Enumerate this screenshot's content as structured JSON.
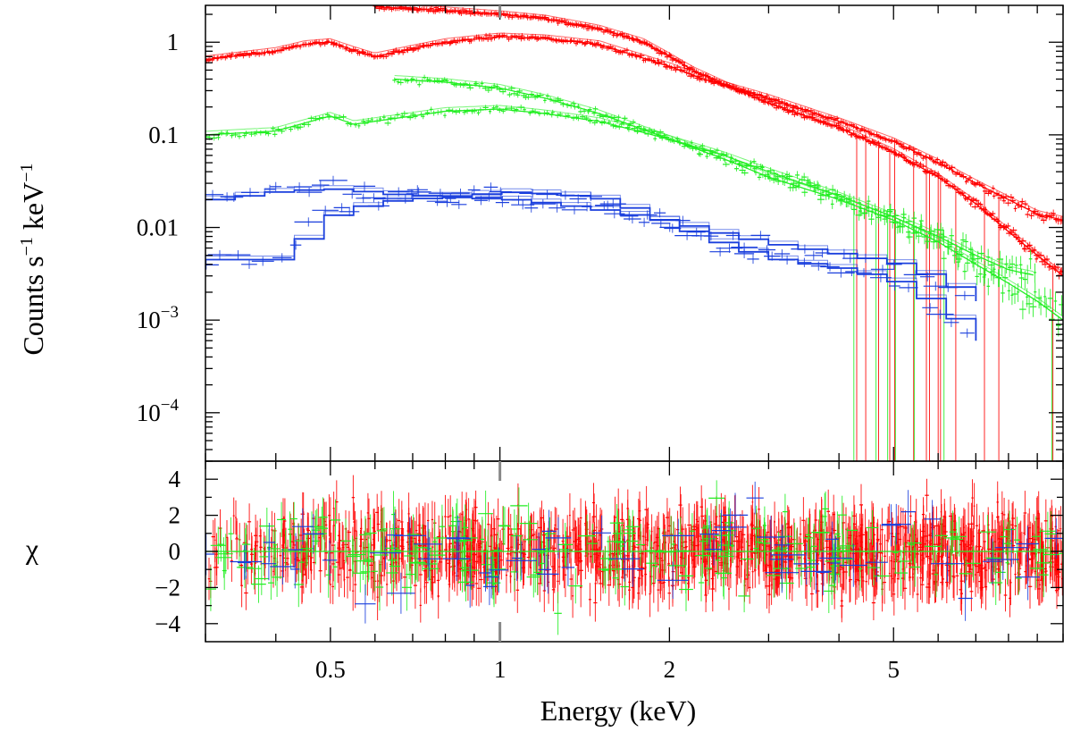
{
  "chart_data": [
    {
      "panel": "spectrum",
      "type": "scatter",
      "ylabel": "Counts s⁻¹ keV⁻¹",
      "ylabel_main": "Counts s",
      "ylabel_exp1": "−1",
      "ylabel_mid": " keV",
      "ylabel_exp2": "−1",
      "xscale": "log",
      "yscale": "log",
      "xlim": [
        0.3,
        10
      ],
      "ylim": [
        3e-05,
        2.5
      ],
      "yticks": [
        {
          "value": 1,
          "label": "1"
        },
        {
          "value": 0.1,
          "label": "0.1"
        },
        {
          "value": 0.01,
          "label": "0.01"
        },
        {
          "value": 0.001,
          "label": "10",
          "exp": "−3"
        },
        {
          "value": 0.0001,
          "label": "10",
          "exp": "−4"
        }
      ],
      "series": [
        {
          "name": "red-high",
          "color": "#ff0000",
          "x": [
            0.6,
            0.8,
            1.0,
            1.2,
            1.5,
            1.8,
            2.0,
            2.2,
            2.5,
            3.0,
            4.0,
            5.0,
            6.0,
            7.0,
            8.0,
            9.0,
            10.0
          ],
          "y": [
            2.4,
            2.2,
            2.0,
            1.8,
            1.4,
            1.0,
            0.7,
            0.5,
            0.35,
            0.22,
            0.12,
            0.065,
            0.035,
            0.018,
            0.009,
            0.005,
            0.003
          ]
        },
        {
          "name": "red-low",
          "color": "#ff0000",
          "x": [
            0.3,
            0.4,
            0.45,
            0.5,
            0.55,
            0.6,
            0.7,
            0.8,
            1.0,
            1.2,
            1.5,
            2.0,
            2.3,
            3.0,
            4.0,
            5.0,
            6.0,
            7.0,
            8.0,
            9.0,
            10.0
          ],
          "y": [
            0.65,
            0.8,
            0.95,
            1.0,
            0.82,
            0.7,
            0.85,
            1.0,
            1.15,
            1.1,
            0.95,
            0.55,
            0.4,
            0.25,
            0.14,
            0.085,
            0.05,
            0.03,
            0.02,
            0.014,
            0.012
          ]
        },
        {
          "name": "green-high",
          "color": "#22ee22",
          "x": [
            0.65,
            0.8,
            1.0,
            1.2,
            1.5,
            2.0,
            2.5,
            3.0,
            4.0,
            5.0,
            6.0,
            7.0,
            8.0,
            9.0,
            10.0
          ],
          "y": [
            0.4,
            0.37,
            0.32,
            0.25,
            0.17,
            0.09,
            0.055,
            0.035,
            0.02,
            0.012,
            0.007,
            0.004,
            0.0025,
            0.0016,
            0.001
          ]
        },
        {
          "name": "green-low",
          "color": "#22ee22",
          "x": [
            0.3,
            0.4,
            0.5,
            0.55,
            0.6,
            0.7,
            0.8,
            1.0,
            1.2,
            1.5,
            2.0,
            2.5,
            3.0,
            4.0,
            5.0,
            6.0,
            7.0,
            8.0,
            9.0
          ],
          "y": [
            0.1,
            0.11,
            0.16,
            0.13,
            0.14,
            0.16,
            0.18,
            0.19,
            0.17,
            0.14,
            0.09,
            0.06,
            0.04,
            0.022,
            0.013,
            0.008,
            0.005,
            0.0035,
            0.003
          ]
        },
        {
          "name": "blue-high",
          "color": "#1a3fdd",
          "x": [
            0.3,
            0.4,
            0.5,
            0.6,
            0.8,
            1.0,
            1.2,
            1.5,
            2.0,
            2.5,
            3.0,
            4.0,
            5.0,
            6.0,
            7.0
          ],
          "y": [
            0.02,
            0.025,
            0.026,
            0.023,
            0.021,
            0.02,
            0.018,
            0.015,
            0.011,
            0.008,
            0.0065,
            0.005,
            0.004,
            0.0025,
            0.0016
          ]
        },
        {
          "name": "blue-low",
          "color": "#1a3fdd",
          "x": [
            0.3,
            0.4,
            0.45,
            0.5,
            0.6,
            0.8,
            1.0,
            1.2,
            1.5,
            2.0,
            2.5,
            3.0,
            4.0,
            5.0,
            6.0,
            7.0
          ],
          "y": [
            0.0045,
            0.0045,
            0.01,
            0.015,
            0.019,
            0.022,
            0.024,
            0.023,
            0.02,
            0.01,
            0.006,
            0.0045,
            0.0035,
            0.0025,
            0.0012,
            0.0006
          ]
        }
      ]
    },
    {
      "panel": "residuals",
      "type": "scatter",
      "ylabel": "χ",
      "xlabel": "Energy (keV)",
      "xscale": "log",
      "xlim": [
        0.3,
        10
      ],
      "ylim": [
        -5,
        5
      ],
      "yticks": [
        {
          "value": 4,
          "label": "4"
        },
        {
          "value": 2,
          "label": "2"
        },
        {
          "value": 0,
          "label": "0"
        },
        {
          "value": -2,
          "label": "−2"
        },
        {
          "value": -4,
          "label": "−4"
        }
      ],
      "xticks": [
        {
          "value": 0.5,
          "label": "0.5"
        },
        {
          "value": 1,
          "label": "1"
        },
        {
          "value": 2,
          "label": "2"
        },
        {
          "value": 5,
          "label": "5"
        }
      ],
      "residual_spread": 2.0,
      "series": [
        {
          "name": "red",
          "color": "#ff0000"
        },
        {
          "name": "green",
          "color": "#22ee22"
        },
        {
          "name": "blue",
          "color": "#1a3fdd"
        }
      ]
    }
  ]
}
